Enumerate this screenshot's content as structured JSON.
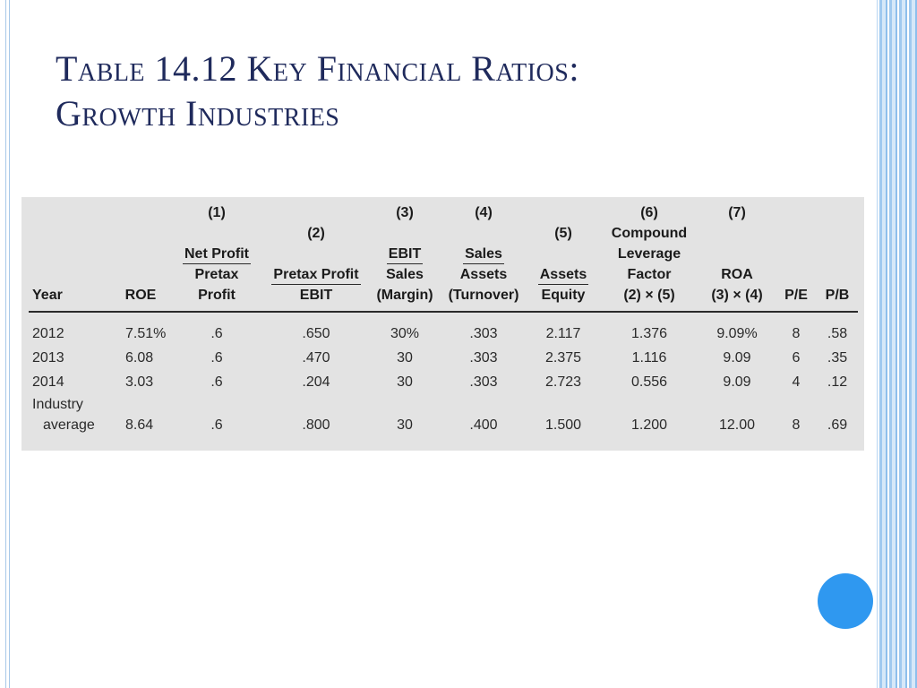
{
  "slide": {
    "title_line1": "Table 14.12 Key Financial Ratios:",
    "title_line2": "Growth Industries"
  },
  "table": {
    "headers": {
      "year": "Year",
      "roe": "ROE",
      "c1": {
        "num": "(1)",
        "top": "Net Profit",
        "mid": "Pretax",
        "bot": "Profit"
      },
      "c2": {
        "num": "(2)",
        "top": "Pretax Profit",
        "bot": "EBIT"
      },
      "c3": {
        "num": "(3)",
        "top": "EBIT",
        "mid": "Sales",
        "bot": "(Margin)"
      },
      "c4": {
        "num": "(4)",
        "top": "Sales",
        "mid": "Assets",
        "bot": "(Turnover)"
      },
      "c5": {
        "num": "(5)",
        "top": "Assets",
        "bot": "Equity"
      },
      "c6": {
        "num": "(6)",
        "l1": "Compound",
        "l2": "Leverage",
        "l3": "Factor",
        "l4": "(2) × (5)"
      },
      "c7": {
        "num": "(7)",
        "l1": "ROA",
        "l2": "(3) × (4)"
      },
      "pe": "P/E",
      "pb": "P/B"
    },
    "rows": [
      {
        "year": "2012",
        "roe": "7.51%",
        "c1": ".6",
        "c2": ".650",
        "c3": "30%",
        "c4": ".303",
        "c5": "2.117",
        "c6": "1.376",
        "c7": "9.09%",
        "pe": "8",
        "pb": ".58"
      },
      {
        "year": "2013",
        "roe": "6.08",
        "c1": ".6",
        "c2": ".470",
        "c3": "30",
        "c4": ".303",
        "c5": "2.375",
        "c6": "1.116",
        "c7": "9.09",
        "pe": "6",
        "pb": ".35"
      },
      {
        "year": "2014",
        "roe": "3.03",
        "c1": ".6",
        "c2": ".204",
        "c3": "30",
        "c4": ".303",
        "c5": "2.723",
        "c6": "0.556",
        "c7": "9.09",
        "pe": "4",
        "pb": ".12"
      }
    ],
    "industry": {
      "label1": "Industry",
      "label2": "average",
      "roe": "8.64",
      "c1": ".6",
      "c2": ".800",
      "c3": "30",
      "c4": ".400",
      "c5": "1.500",
      "c6": "1.200",
      "c7": "12.00",
      "pe": "8",
      "pb": ".69"
    }
  },
  "colors": {
    "title": "#1f2a5c",
    "table_background": "#e3e3e3",
    "accent_circle": "#2f98f0",
    "frame": "#9fc9ef"
  }
}
